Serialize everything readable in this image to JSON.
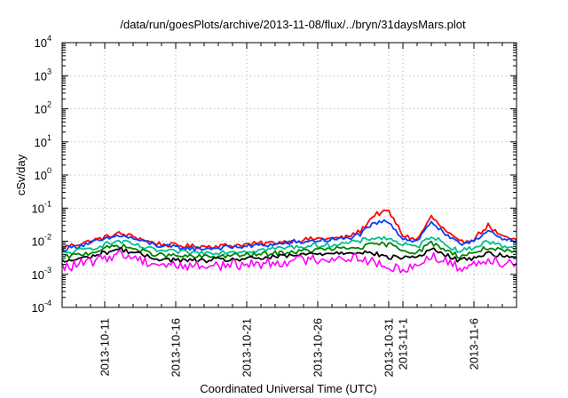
{
  "chart_data": {
    "type": "line",
    "title": "/data/run/goesPlots/archive/2013-11-08/flux/../bryn/31daysMars.plot",
    "xlabel": "Coordinated Universal Time (UTC)",
    "ylabel": "cSv/day",
    "yscale": "log",
    "ylim": [
      0.0001,
      10000
    ],
    "y_ticks": [
      {
        "base": "10",
        "exp": "-4",
        "value": 0.0001
      },
      {
        "base": "10",
        "exp": "-3",
        "value": 0.001
      },
      {
        "base": "10",
        "exp": "-2",
        "value": 0.01
      },
      {
        "base": "10",
        "exp": "-1",
        "value": 0.1
      },
      {
        "base": "10",
        "exp": "0",
        "value": 1
      },
      {
        "base": "10",
        "exp": "1",
        "value": 10
      },
      {
        "base": "10",
        "exp": "2",
        "value": 100
      },
      {
        "base": "10",
        "exp": "3",
        "value": 1000
      },
      {
        "base": "10",
        "exp": "4",
        "value": 10000
      }
    ],
    "xlim": [
      "2013-10-08",
      "2013-11-09"
    ],
    "x_ticks": [
      "2013-10-11",
      "2013-10-16",
      "2013-10-21",
      "2013-10-26",
      "2013-10-31",
      "2013-11-1",
      "2013-11-6"
    ],
    "x_tick_dates": [
      "2013-10-11",
      "2013-10-16",
      "2013-10-21",
      "2013-10-26",
      "2013-10-31",
      "2013-11-01",
      "2013-11-06"
    ],
    "grid": true,
    "x": [
      "2013-10-08",
      "2013-10-09",
      "2013-10-10",
      "2013-10-11",
      "2013-10-12",
      "2013-10-13",
      "2013-10-14",
      "2013-10-15",
      "2013-10-16",
      "2013-10-17",
      "2013-10-18",
      "2013-10-19",
      "2013-10-20",
      "2013-10-21",
      "2013-10-22",
      "2013-10-23",
      "2013-10-24",
      "2013-10-25",
      "2013-10-26",
      "2013-10-27",
      "2013-10-28",
      "2013-10-29",
      "2013-10-30",
      "2013-10-31",
      "2013-11-01",
      "2013-11-02",
      "2013-11-03",
      "2013-11-04",
      "2013-11-05",
      "2013-11-06",
      "2013-11-07",
      "2013-11-08",
      "2013-11-09"
    ],
    "series": [
      {
        "color": "#ff0000",
        "values": [
          0.0065,
          0.008,
          0.01,
          0.013,
          0.017,
          0.014,
          0.01,
          0.008,
          0.0075,
          0.007,
          0.007,
          0.0072,
          0.0075,
          0.008,
          0.0085,
          0.009,
          0.01,
          0.011,
          0.012,
          0.012,
          0.013,
          0.02,
          0.065,
          0.08,
          0.015,
          0.011,
          0.055,
          0.02,
          0.009,
          0.012,
          0.03,
          0.013,
          0.011
        ]
      },
      {
        "color": "#0040ff",
        "values": [
          0.0055,
          0.007,
          0.009,
          0.011,
          0.015,
          0.012,
          0.009,
          0.007,
          0.0065,
          0.006,
          0.006,
          0.0063,
          0.0066,
          0.007,
          0.0075,
          0.008,
          0.009,
          0.0095,
          0.0105,
          0.011,
          0.012,
          0.016,
          0.035,
          0.04,
          0.012,
          0.01,
          0.04,
          0.015,
          0.008,
          0.011,
          0.02,
          0.011,
          0.01
        ]
      },
      {
        "color": "#00c090",
        "values": [
          0.0042,
          0.005,
          0.006,
          0.008,
          0.01,
          0.008,
          0.006,
          0.005,
          0.0048,
          0.0045,
          0.0045,
          0.0047,
          0.0049,
          0.005,
          0.0055,
          0.006,
          0.0065,
          0.007,
          0.0075,
          0.008,
          0.0085,
          0.01,
          0.013,
          0.012,
          0.008,
          0.0065,
          0.015,
          0.008,
          0.005,
          0.0065,
          0.01,
          0.007,
          0.0065
        ]
      },
      {
        "color": "#008000",
        "values": [
          0.0032,
          0.0038,
          0.0045,
          0.006,
          0.0075,
          0.006,
          0.0045,
          0.0038,
          0.0036,
          0.0034,
          0.0034,
          0.0035,
          0.0037,
          0.0038,
          0.004,
          0.0043,
          0.0047,
          0.005,
          0.0055,
          0.0058,
          0.006,
          0.0065,
          0.008,
          0.008,
          0.0055,
          0.0045,
          0.009,
          0.0055,
          0.0035,
          0.0045,
          0.0065,
          0.005,
          0.0045
        ]
      },
      {
        "color": "#000000",
        "values": [
          0.0024,
          0.0028,
          0.0034,
          0.0045,
          0.0058,
          0.0046,
          0.0034,
          0.0029,
          0.0027,
          0.0026,
          0.0026,
          0.0027,
          0.0028,
          0.0029,
          0.0031,
          0.0033,
          0.0036,
          0.0039,
          0.0042,
          0.0044,
          0.0046,
          0.0048,
          0.0042,
          0.0032,
          0.0033,
          0.0033,
          0.0058,
          0.0038,
          0.0026,
          0.0032,
          0.0044,
          0.0036,
          0.0033
        ]
      },
      {
        "color": "#ff00ff",
        "values": [
          0.0016,
          0.0019,
          0.0023,
          0.0032,
          0.0042,
          0.0033,
          0.0024,
          0.002,
          0.0019,
          0.0018,
          0.0018,
          0.0019,
          0.0019,
          0.002,
          0.0021,
          0.0023,
          0.0025,
          0.0027,
          0.0029,
          0.003,
          0.0032,
          0.0032,
          0.0022,
          0.0014,
          0.0016,
          0.0018,
          0.0038,
          0.0024,
          0.0016,
          0.002,
          0.003,
          0.0024,
          0.0022
        ]
      }
    ]
  }
}
